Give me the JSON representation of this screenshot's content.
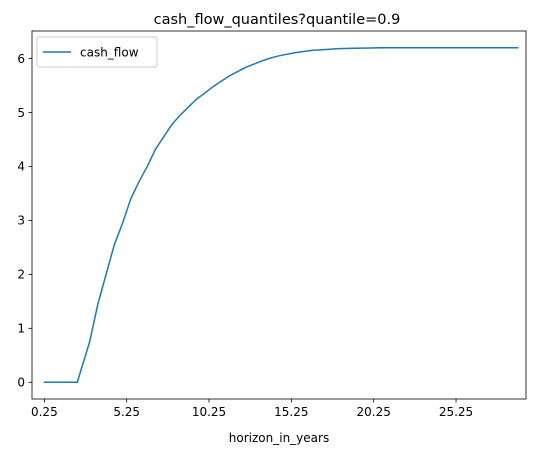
{
  "chart_data": {
    "type": "line",
    "title": "cash_flow_quantiles?quantile=0.9",
    "xlabel": "horizon_in_years",
    "ylabel": "",
    "xlim": [
      -0.5,
      29.5
    ],
    "ylim": [
      -0.31,
      6.51
    ],
    "x_ticks": [
      {
        "value": 0.25,
        "label": "0.25"
      },
      {
        "value": 5.25,
        "label": "5.25"
      },
      {
        "value": 10.25,
        "label": "10.25"
      },
      {
        "value": 15.25,
        "label": "15.25"
      },
      {
        "value": 20.25,
        "label": "20.25"
      },
      {
        "value": 25.25,
        "label": "25.25"
      },
      {
        "value": 30.25,
        "label": ""
      }
    ],
    "y_ticks": [
      {
        "value": 0,
        "label": "0"
      },
      {
        "value": 1,
        "label": "1"
      },
      {
        "value": 2,
        "label": "2"
      },
      {
        "value": 3,
        "label": "3"
      },
      {
        "value": 4,
        "label": "4"
      },
      {
        "value": 5,
        "label": "5"
      },
      {
        "value": 6,
        "label": "6"
      }
    ],
    "grid": false,
    "legend": {
      "position": "top-left"
    },
    "series": [
      {
        "name": "cash_flow",
        "color": "#1f77b4",
        "x": [
          0.25,
          2.25,
          2.5,
          3.0,
          3.5,
          4.0,
          4.5,
          5.0,
          5.5,
          6.0,
          6.5,
          7.0,
          7.5,
          8.0,
          8.5,
          9.0,
          9.5,
          10.0,
          10.5,
          11.0,
          11.5,
          12.0,
          12.5,
          13.0,
          13.5,
          14.0,
          14.5,
          15.0,
          15.5,
          16.0,
          16.5,
          17.0,
          17.5,
          18.0,
          19.0,
          20.0,
          21.0,
          22.0,
          24.0,
          26.0,
          28.0,
          29.0
        ],
        "y": [
          0.0,
          0.0,
          0.25,
          0.75,
          1.45,
          2.0,
          2.55,
          2.95,
          3.4,
          3.72,
          4.0,
          4.32,
          4.55,
          4.78,
          4.95,
          5.1,
          5.25,
          5.36,
          5.48,
          5.58,
          5.68,
          5.76,
          5.84,
          5.9,
          5.96,
          6.01,
          6.05,
          6.08,
          6.11,
          6.13,
          6.15,
          6.16,
          6.17,
          6.18,
          6.19,
          6.195,
          6.2,
          6.2,
          6.2,
          6.2,
          6.2,
          6.2
        ]
      }
    ]
  }
}
